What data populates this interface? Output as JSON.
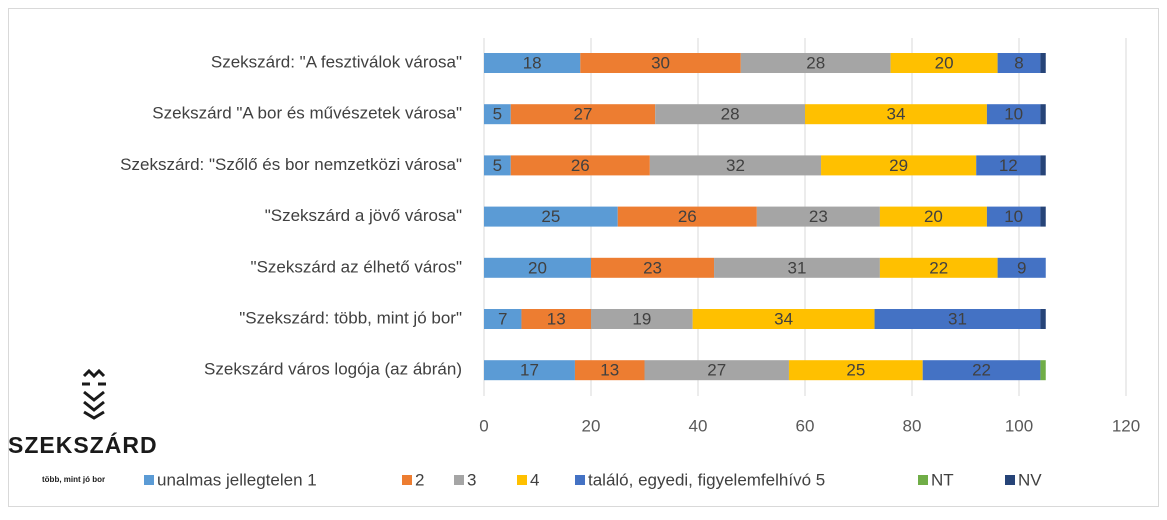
{
  "chart_data": {
    "type": "stacked_bar_horizontal",
    "categories": [
      "Szekszárd: \"A fesztiválok városa\"",
      "Szekszárd \"A bor és művészetek városa\"",
      "Szekszárd: \"Szőlő és bor nemzetközi városa\"",
      "\"Szekszárd a jövő városa\"",
      "\"Szekszárd az élhető város\"",
      "\"Szekszárd: több, mint jó bor\"",
      "Szekszárd város logója (az ábrán)"
    ],
    "series": [
      {
        "name": "unalmas jellegtelen 1",
        "color": "#5b9bd5",
        "show_labels": true,
        "values": [
          18,
          5,
          5,
          25,
          20,
          7,
          17
        ]
      },
      {
        "name": "2",
        "color": "#ed7d31",
        "show_labels": true,
        "values": [
          30,
          27,
          26,
          26,
          23,
          13,
          13
        ]
      },
      {
        "name": "3",
        "color": "#a5a5a5",
        "show_labels": true,
        "values": [
          28,
          28,
          32,
          23,
          31,
          19,
          27
        ]
      },
      {
        "name": "4",
        "color": "#ffc000",
        "show_labels": true,
        "values": [
          20,
          34,
          29,
          20,
          22,
          34,
          25
        ]
      },
      {
        "name": "találó, egyedi, figyelemfelhívó 5",
        "color": "#4472c4",
        "show_labels": true,
        "values": [
          8,
          10,
          12,
          10,
          9,
          31,
          22
        ]
      },
      {
        "name": "NT",
        "color": "#70ad47",
        "show_labels": false,
        "values": [
          0,
          0,
          0,
          0,
          0,
          0,
          1
        ]
      },
      {
        "name": "NV",
        "color": "#264478",
        "show_labels": false,
        "values": [
          1,
          1,
          1,
          1,
          0,
          1,
          0
        ]
      }
    ],
    "xlim": [
      0,
      120
    ],
    "xticks": [
      0,
      20,
      40,
      60,
      80,
      100,
      120
    ],
    "grid": true,
    "legend": "bottom"
  },
  "logo": {
    "name": "SZEKSZÁRD",
    "tagline": "több, mint jó bor"
  }
}
